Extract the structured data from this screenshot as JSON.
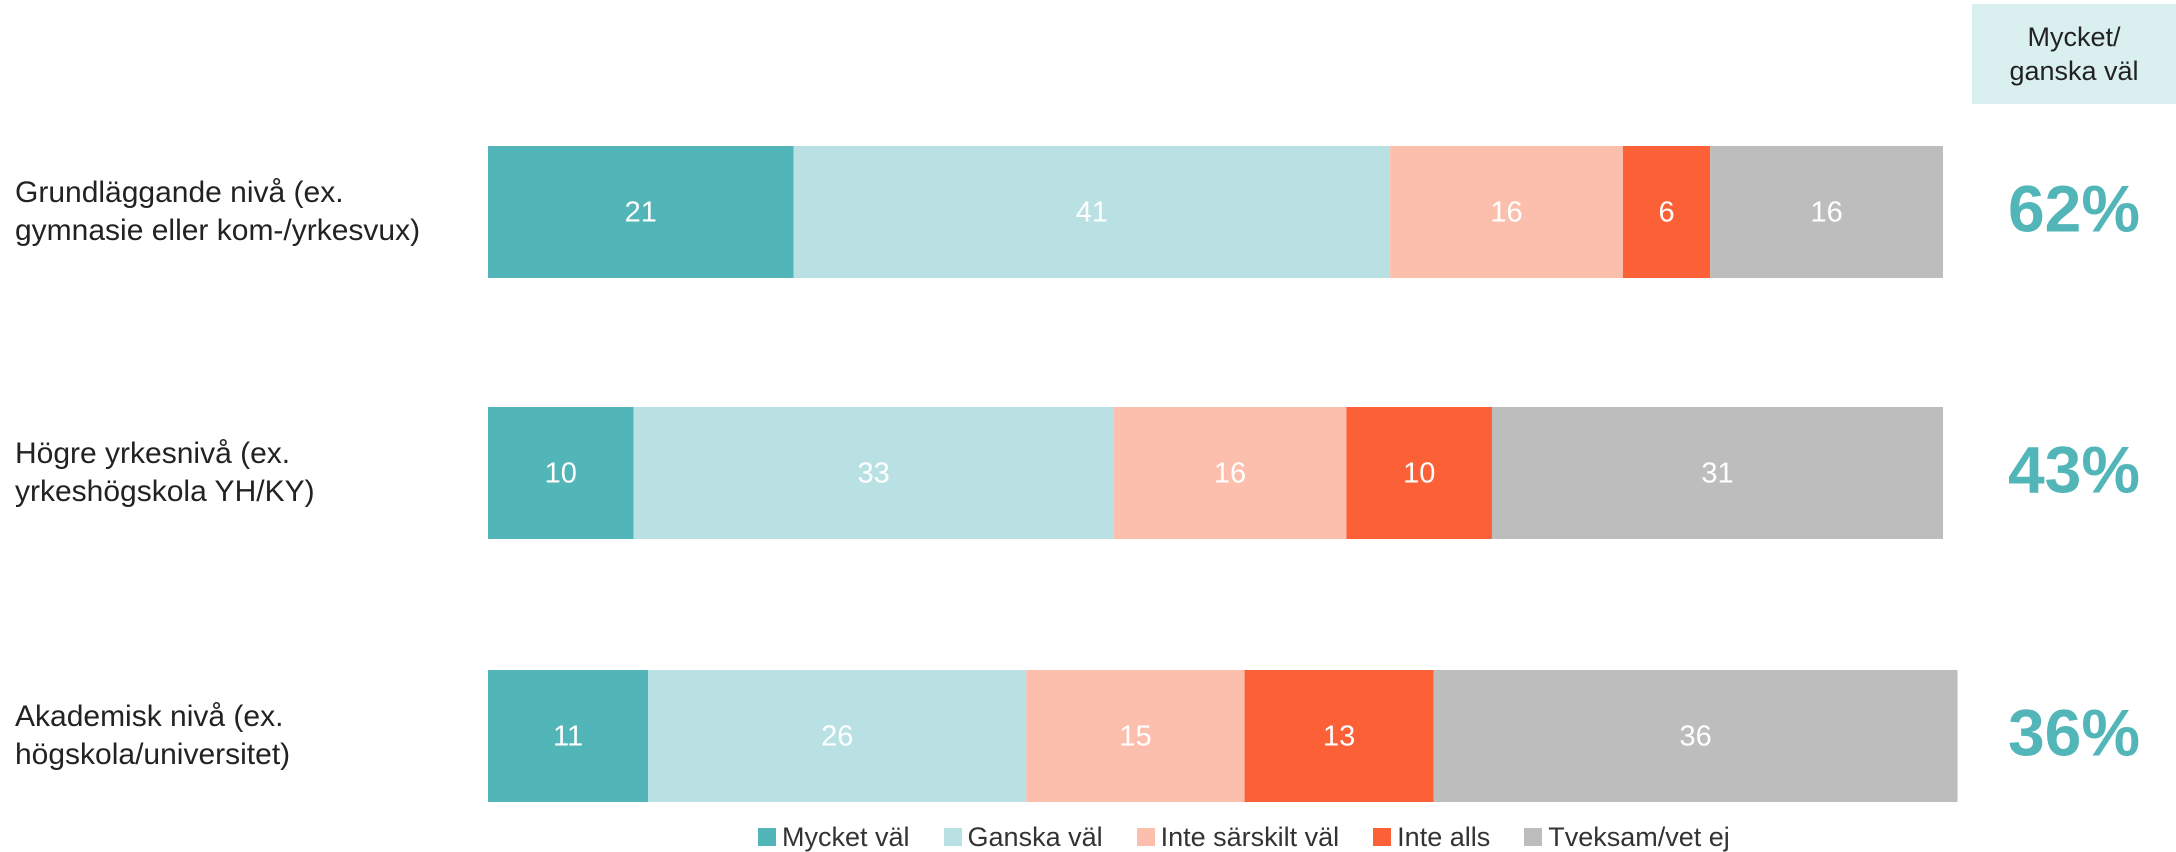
{
  "chart_data": {
    "type": "bar",
    "orientation": "horizontal",
    "stacked": true,
    "categories": [
      "Grundläggande nivå (ex. gymnasie eller kom-/yrkesvux)",
      "Högre yrkesnivå (ex. yrkeshögskola YH/KY)",
      "Akademisk nivå (ex. högskola/universitet)"
    ],
    "series": [
      {
        "name": "Mycket väl",
        "color": "#52b5b8",
        "values": [
          21,
          10,
          11
        ]
      },
      {
        "name": "Ganska väl",
        "color": "#b9e1e3",
        "values": [
          41,
          33,
          26
        ]
      },
      {
        "name": "Inte särskilt väl",
        "color": "#fdbfad",
        "values": [
          16,
          16,
          15
        ]
      },
      {
        "name": "Inte alls",
        "color": "#fc6036",
        "values": [
          6,
          10,
          13
        ]
      },
      {
        "name": "Tveksam/vet ej",
        "color": "#bdbdbd",
        "values": [
          16,
          31,
          36
        ]
      }
    ],
    "xlim": [
      0,
      100
    ],
    "legend": "bottom",
    "summary": {
      "title": [
        "Mycket/",
        "ganska väl"
      ],
      "color": "#52b5b8",
      "values": [
        62,
        43,
        36
      ],
      "value_labels": [
        "62%",
        "43%",
        "36%"
      ]
    }
  }
}
